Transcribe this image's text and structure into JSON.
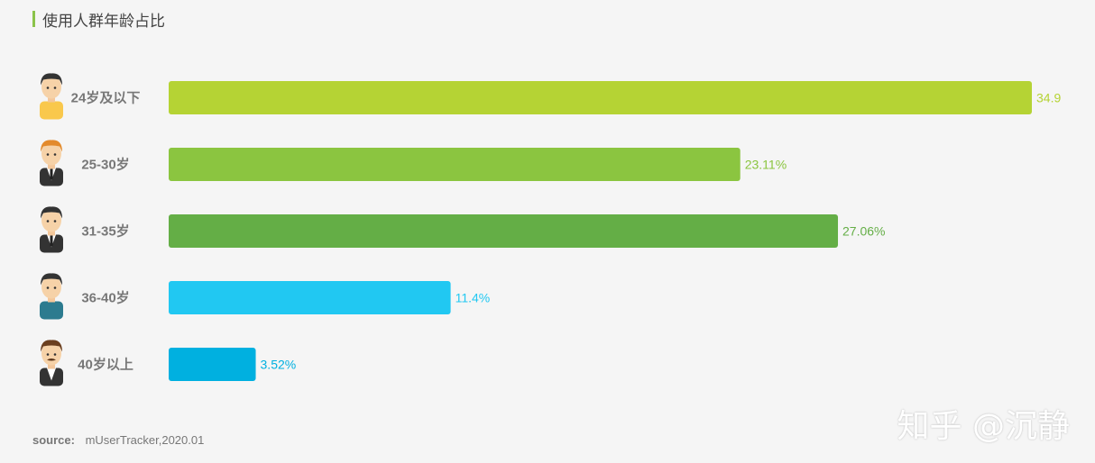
{
  "chart_data": {
    "type": "bar",
    "orientation": "horizontal",
    "title": "使用人群年龄占比",
    "categories": [
      "24岁及以下",
      "25-30岁",
      "31-35岁",
      "36-40岁",
      "40岁以上"
    ],
    "values": [
      34.9,
      23.11,
      27.06,
      11.4,
      3.52
    ],
    "value_labels": [
      "34.9",
      "23.11%",
      "27.06%",
      "11.4%",
      "3.52%"
    ],
    "colors": [
      "#b5d334",
      "#8bc540",
      "#64ae46",
      "#21c8f2",
      "#00b0e0"
    ],
    "xlim": [
      0,
      34.9
    ],
    "xlabel": "",
    "ylabel": "",
    "avatar_icons": [
      "avatar-boy-icon",
      "avatar-young-man-icon",
      "avatar-man-suit-icon",
      "avatar-man-casual-icon",
      "avatar-mustache-man-icon"
    ]
  },
  "source": {
    "label": "source:",
    "text": "mUserTracker,2020.01"
  },
  "watermark": "知乎 @沉静"
}
